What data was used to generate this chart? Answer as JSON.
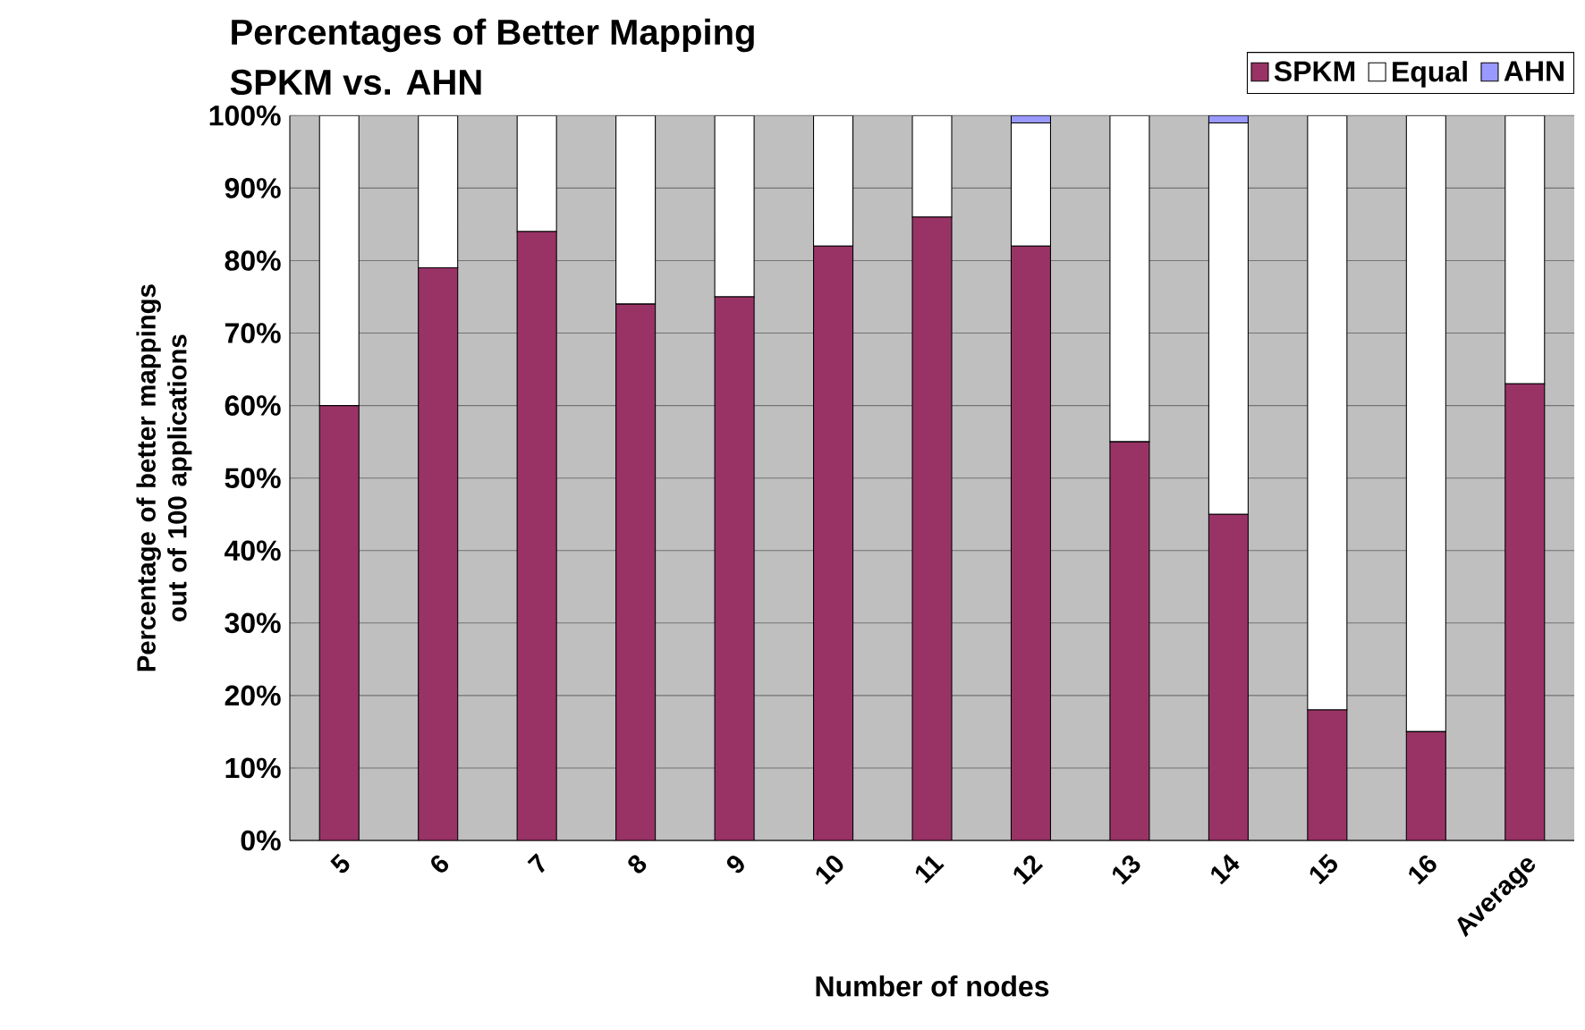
{
  "chart_data": {
    "type": "bar",
    "stacked": true,
    "title": "Percentages of Better Mapping",
    "subtitle": "SPKM vs. AHN",
    "xlabel": "Number of nodes",
    "ylabel": "Percentage of better mappings out of 100 applications",
    "categories": [
      "5",
      "6",
      "7",
      "8",
      "9",
      "10",
      "11",
      "12",
      "13",
      "14",
      "15",
      "16",
      "Average"
    ],
    "series": [
      {
        "name": "SPKM",
        "color": "#993366",
        "values": [
          60,
          79,
          84,
          74,
          75,
          82,
          86,
          82,
          55,
          45,
          18,
          15,
          63
        ]
      },
      {
        "name": "Equal",
        "color": "#ffffff",
        "values": [
          40,
          21,
          16,
          26,
          25,
          18,
          14,
          17,
          45,
          54,
          82,
          85,
          37
        ]
      },
      {
        "name": "AHN",
        "color": "#9999ff",
        "values": [
          0,
          0,
          0,
          0,
          0,
          0,
          0,
          1,
          0,
          1,
          0,
          0,
          null
        ]
      }
    ],
    "ylim": [
      0,
      100
    ],
    "yticks": [
      {
        "value": 0,
        "label": "0%"
      },
      {
        "value": 10,
        "label": "10%"
      },
      {
        "value": 20,
        "label": "20%"
      },
      {
        "value": 30,
        "label": "30%"
      },
      {
        "value": 40,
        "label": "40%"
      },
      {
        "value": 50,
        "label": "50%"
      },
      {
        "value": 60,
        "label": "60%"
      },
      {
        "value": 70,
        "label": "70%"
      },
      {
        "value": 80,
        "label": "80%"
      },
      {
        "value": 90,
        "label": "90%"
      },
      {
        "value": 100,
        "label": "100%"
      }
    ],
    "grid": "y",
    "legend": "top right"
  }
}
